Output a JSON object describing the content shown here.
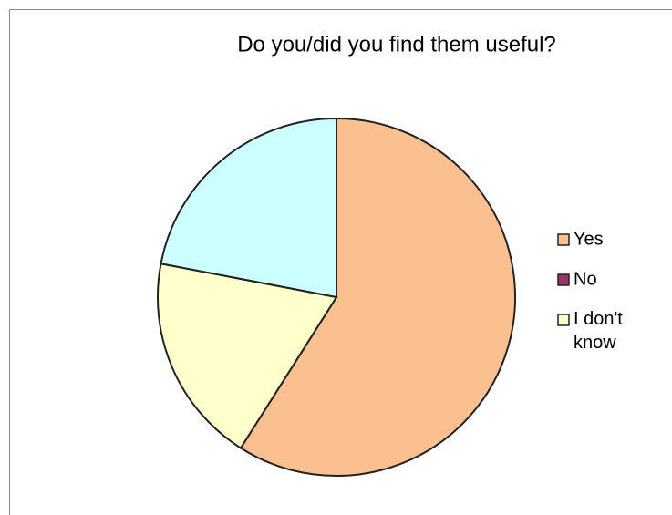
{
  "chart_data": {
    "type": "pie",
    "title": "Do you/did you find them useful?",
    "categories": [
      "Yes",
      "No",
      "I don't know",
      null
    ],
    "values": [
      59,
      0,
      19,
      22
    ],
    "colors": [
      "#fac090",
      "#993366",
      "#ffffcc",
      "#ccffff"
    ],
    "legend": "right"
  }
}
